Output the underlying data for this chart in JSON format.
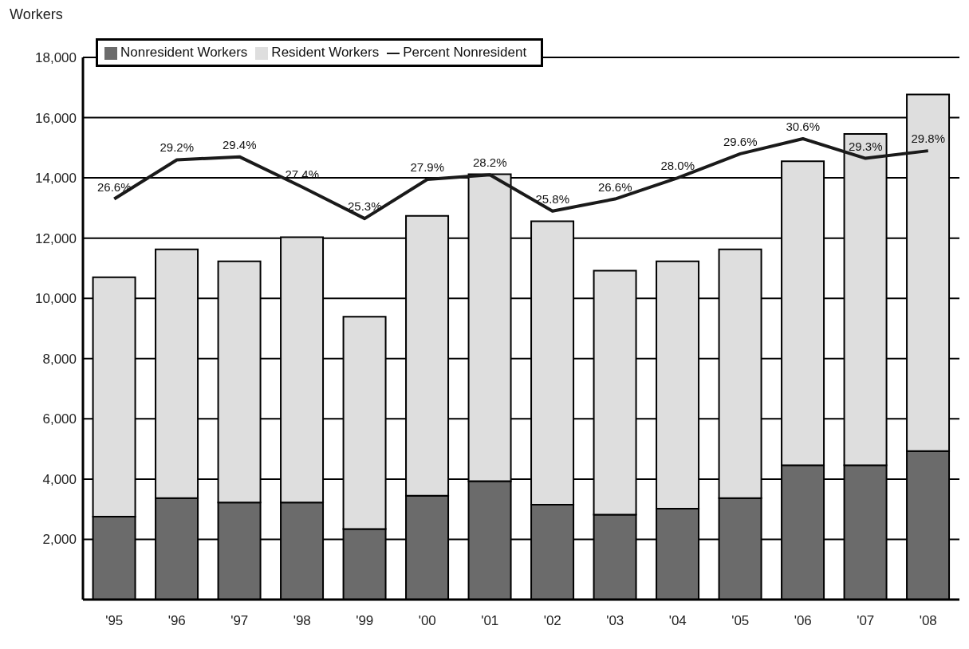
{
  "chart_data": {
    "type": "bar",
    "ylabel": "Workers",
    "categories": [
      "'95",
      "'96",
      "'97",
      "'98",
      "'99",
      "'00",
      "'01",
      "'02",
      "'03",
      "'04",
      "'05",
      "'06",
      "'07",
      "'08"
    ],
    "stacked": true,
    "ylim": [
      0,
      18000
    ],
    "yticks": [
      {
        "value": 2000,
        "label": "2,000"
      },
      {
        "value": 4000,
        "label": "4,000"
      },
      {
        "value": 6000,
        "label": "6,000"
      },
      {
        "value": 8000,
        "label": "8,000"
      },
      {
        "value": 10000,
        "label": "10,000"
      },
      {
        "value": 12000,
        "label": "12,000"
      },
      {
        "value": 14000,
        "label": "14,000"
      },
      {
        "value": 16000,
        "label": "16,000"
      },
      {
        "value": 18000,
        "label": "18,000"
      }
    ],
    "y2lim": [
      0,
      36
    ],
    "grid": "y",
    "legend": "top left",
    "marker": "none",
    "series": [
      {
        "name": "Nonresident Workers",
        "color": "#6b6b6b",
        "values": [
          2750,
          3370,
          3220,
          3220,
          2340,
          3450,
          3930,
          3150,
          2820,
          3020,
          3370,
          4460,
          4460,
          4930
        ]
      },
      {
        "name": "Resident Workers",
        "color": "#dedede",
        "values": [
          7950,
          8260,
          8010,
          8810,
          7050,
          9290,
          10190,
          9410,
          8100,
          8210,
          8260,
          10090,
          11000,
          11840
        ]
      },
      {
        "name": "Percent Nonresident",
        "type": "line",
        "axis": "y2",
        "color": "#1a1a1a",
        "line_style": "solid",
        "values": [
          26.6,
          29.2,
          29.4,
          27.4,
          25.3,
          27.9,
          28.2,
          25.8,
          26.6,
          28.0,
          29.6,
          30.6,
          29.3,
          29.8
        ],
        "value_labels": [
          "26.6%",
          "29.2%",
          "29.4%",
          "27.4%",
          "25.3%",
          "27.9%",
          "28.2%",
          "25.8%",
          "26.6%",
          "28.0%",
          "29.6%",
          "30.6%",
          "29.3%",
          "29.8%"
        ]
      }
    ]
  }
}
